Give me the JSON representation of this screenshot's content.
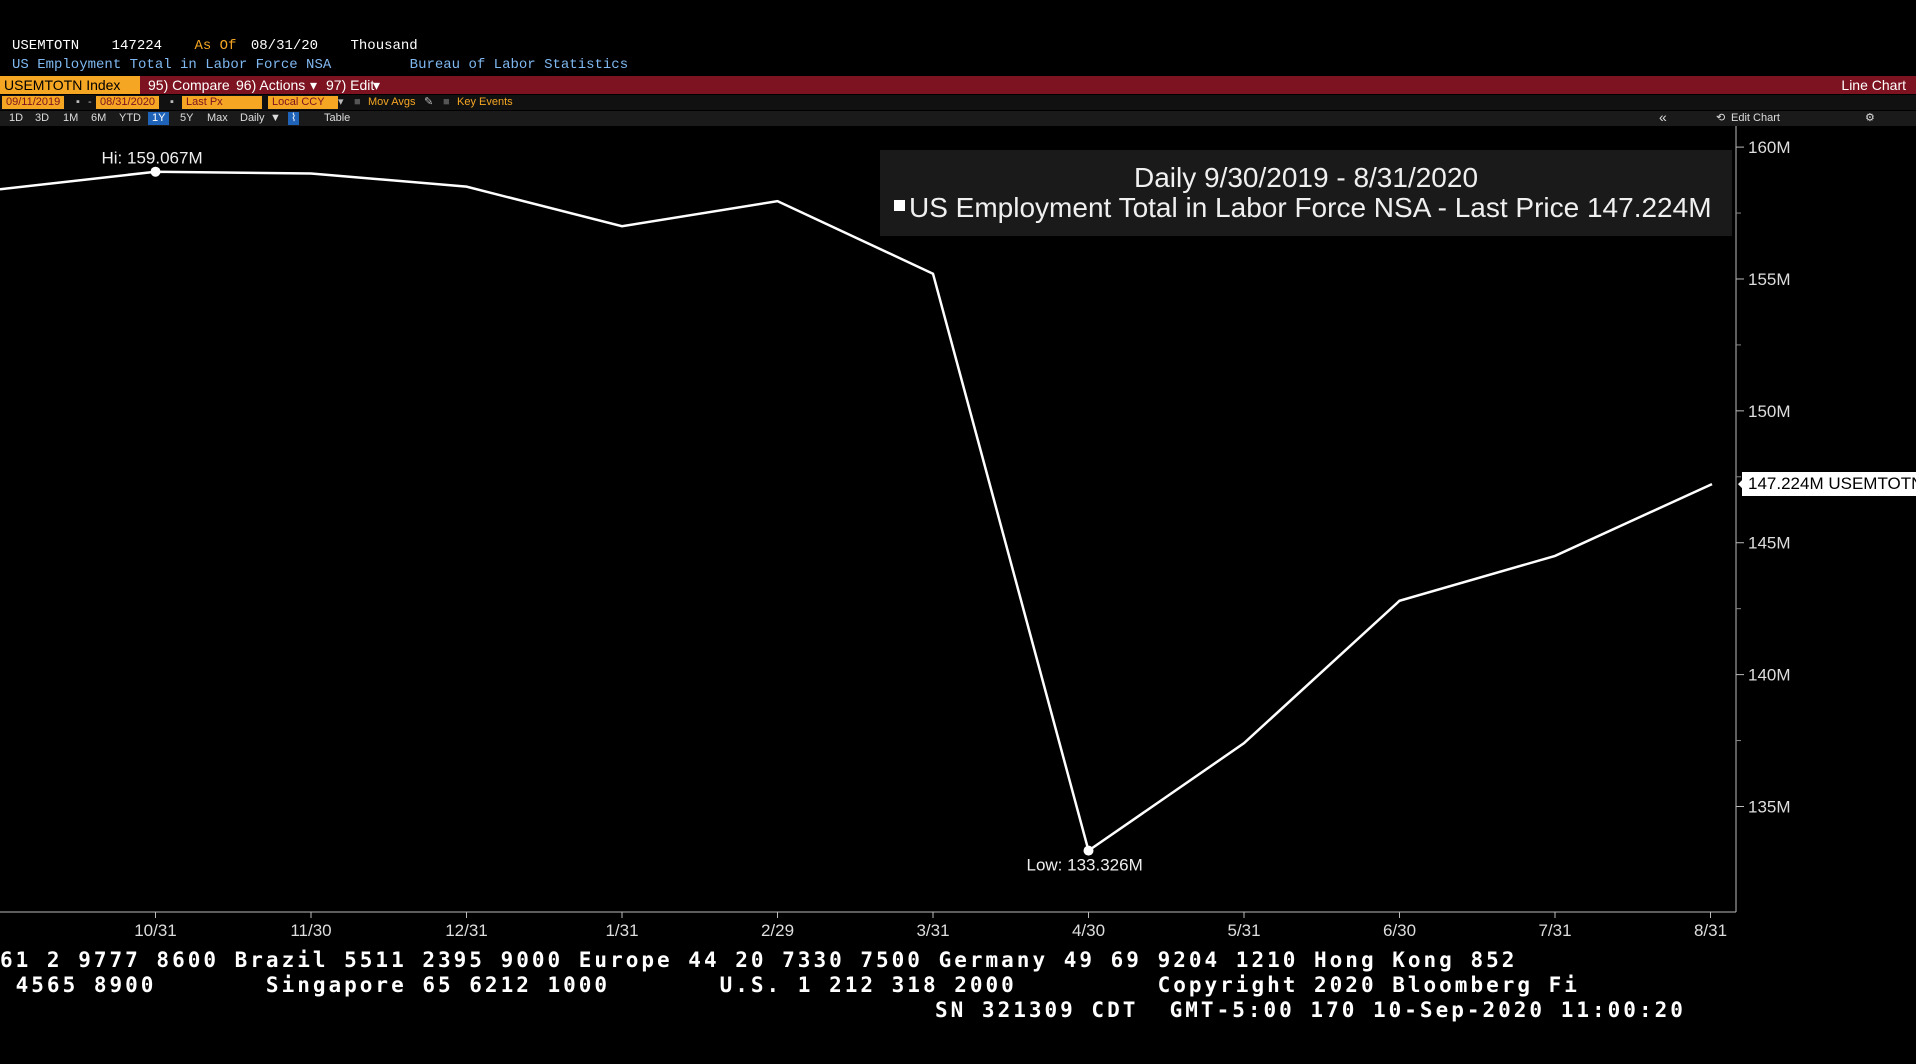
{
  "header": {
    "ticker": "USEMTOTN",
    "value": "147224",
    "as_of_label": "As Of",
    "as_of_date": "08/31/20",
    "units": "Thousand",
    "description": "US Employment Total in Labor Force NSA",
    "source": "Bureau of Labor Statistics"
  },
  "menubar": {
    "security": "USEMTOTN Index",
    "compare": "95) Compare",
    "actions": "96) Actions",
    "edit": "97) Edit",
    "chart_type": "Line Chart"
  },
  "optionsbar": {
    "start_date": "09/11/2019",
    "end_date": "08/31/2020",
    "field": "Last Px",
    "currency": "Local CCY",
    "mov_avgs": "Mov Avgs",
    "key_events": "Key Events"
  },
  "rangebar": {
    "ranges": [
      "1D",
      "3D",
      "1M",
      "6M",
      "YTD",
      "1Y",
      "5Y",
      "Max"
    ],
    "selected": "1Y",
    "frequency": "Daily",
    "table": "Table",
    "edit_chart": "Edit Chart",
    "collapse_glyph": "«",
    "gear_glyph": "⚙"
  },
  "legend": {
    "title": "Daily 9/30/2019 - 8/31/2020",
    "series_label": "US Employment Total in Labor Force NSA - Last Price 147.224M"
  },
  "last_price_tag": "147.224M USEMTOTN",
  "chart_data": {
    "type": "line",
    "xlabel": "",
    "ylabel": "",
    "x_ticks": [
      "10/31",
      "11/30",
      "12/31",
      "1/31",
      "2/29",
      "3/31",
      "4/30",
      "5/31",
      "6/30",
      "7/31",
      "8/31"
    ],
    "y_ticks": [
      "135M",
      "140M",
      "145M",
      "150M",
      "155M",
      "160M"
    ],
    "ylim": [
      131.0,
      160.8
    ],
    "grid": false,
    "series": [
      {
        "color": "#ffffff",
        "x": [
          "9/30",
          "10/31",
          "11/30",
          "12/31",
          "1/31",
          "2/29",
          "3/31",
          "4/30",
          "5/31",
          "6/30",
          "7/31",
          "8/31"
        ],
        "values": [
          158.4,
          159.067,
          159.0,
          158.5,
          157.0,
          157.95,
          155.2,
          133.326,
          137.4,
          142.8,
          144.5,
          147.224
        ]
      }
    ],
    "annotations": {
      "high": "Hi: 159.067M",
      "low": "Low: 133.326M"
    }
  },
  "footer": {
    "line1": "61 2 9777 8600 Brazil 5511 2395 9000 Europe 44 20 7330 7500 Germany 49 69 9204 1210 Hong Kong 852",
    "line2": " 4565 8900       Singapore 65 6212 1000       U.S. 1 212 318 2000         Copyright 2020 Bloomberg Fi",
    "line3": "SN 321309 CDT  GMT-5:00 170 10-Sep-2020 11:00:20"
  }
}
